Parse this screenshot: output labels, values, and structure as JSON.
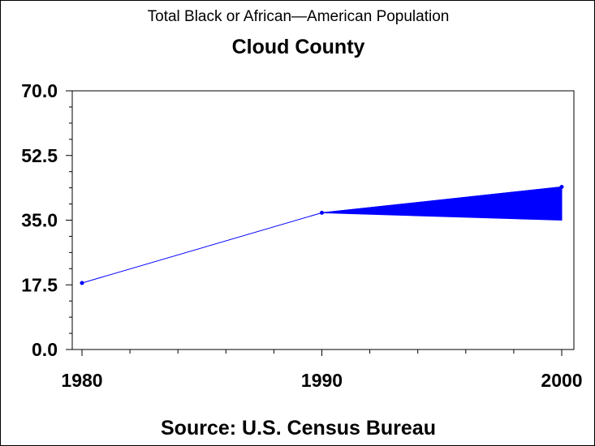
{
  "chart_data": {
    "type": "line",
    "title": "Total Black or African—American Population",
    "subtitle": "Cloud County",
    "footnote": "Source: U.S. Census Bureau",
    "x": [
      1980,
      1990,
      2000
    ],
    "x_tick_labels": [
      "1980",
      "1990",
      "2000"
    ],
    "series": [
      {
        "values": [
          18,
          37,
          44
        ]
      }
    ],
    "band": {
      "x": [
        1990,
        2000
      ],
      "low": [
        37,
        35
      ],
      "high": [
        37,
        44
      ]
    },
    "ylim": [
      0,
      70
    ],
    "y_ticks": [
      0,
      17.5,
      35,
      52.5,
      70
    ],
    "y_tick_labels": [
      "0.0",
      "17.5",
      "35.0",
      "52.5",
      "70.0"
    ],
    "xlim": [
      1980,
      2000
    ],
    "grid": false,
    "colors": {
      "series": "#0000ff",
      "axis": "#000000"
    }
  }
}
